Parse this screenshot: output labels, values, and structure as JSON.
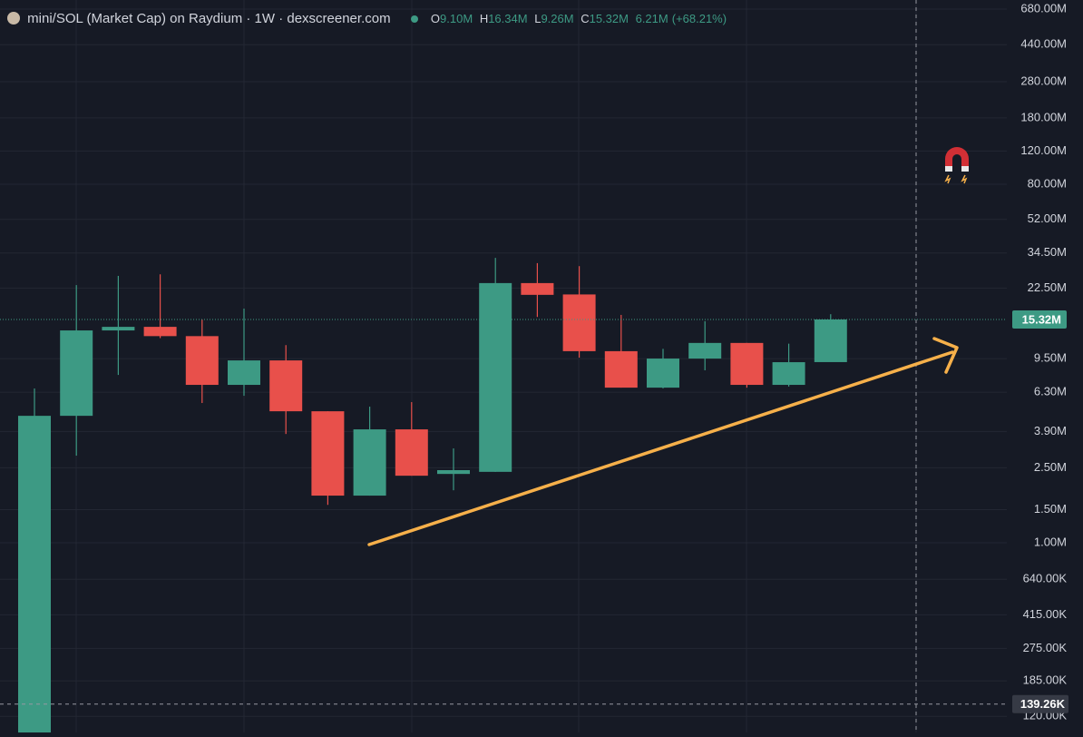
{
  "chart_data": {
    "type": "candlestick",
    "title": "mini/SOL (Market Cap) on Raydium · 1W · dexscreener.com",
    "ohlc_header": {
      "open_key": "O",
      "open": "9.10M",
      "high_key": "H",
      "high": "16.34M",
      "low_key": "L",
      "low": "9.26M",
      "close_key": "C",
      "close": "15.32M",
      "change": "6.21M",
      "change_pct": "(+68.21%)"
    },
    "categories": [
      null,
      null,
      null,
      null,
      null,
      null,
      null,
      null,
      null,
      null,
      null,
      null,
      null,
      null,
      null,
      null,
      null,
      null,
      null,
      null
    ],
    "open": [
      90000,
      4720000,
      13400000,
      14000000,
      12500000,
      6890000,
      9290000,
      4990000,
      1780000,
      4000000,
      2320000,
      2380000,
      23900000,
      20800000,
      10400000,
      6660000,
      9500000,
      11500000,
      6890000,
      9100000
    ],
    "high": [
      6590000,
      23300000,
      26100000,
      26600000,
      15300000,
      17500000,
      11200000,
      4990000,
      5280000,
      5580000,
      3170000,
      32500000,
      30500000,
      29400000,
      16200000,
      10700000,
      15000000,
      11500000,
      11400000,
      16340000
    ],
    "low": [
      90000,
      2900000,
      7780000,
      12200000,
      5520000,
      6030000,
      3780000,
      1590000,
      1780000,
      2270000,
      1900000,
      2380000,
      15800000,
      9610000,
      6660000,
      6600000,
      8230000,
      6660000,
      6750000,
      9260000
    ],
    "close": [
      4720000,
      13400000,
      14000000,
      12500000,
      6890000,
      9290000,
      4990000,
      1780000,
      4000000,
      2270000,
      2430000,
      23900000,
      20700000,
      10400000,
      6660000,
      9500000,
      11500000,
      6890000,
      9090000,
      15320000
    ],
    "up_color": "#3d9a84",
    "down_color": "#e8504b",
    "ylim": [
      98500,
      760000000
    ],
    "log_scale": true,
    "grid": true,
    "yticks": [
      {
        "value": 680000000,
        "label": "680.00M"
      },
      {
        "value": 440000000,
        "label": "440.00M"
      },
      {
        "value": 280000000,
        "label": "280.00M"
      },
      {
        "value": 180000000,
        "label": "180.00M"
      },
      {
        "value": 120000000,
        "label": "120.00M"
      },
      {
        "value": 80000000,
        "label": "80.00M"
      },
      {
        "value": 52000000,
        "label": "52.00M"
      },
      {
        "value": 34500000,
        "label": "34.50M"
      },
      {
        "value": 22500000,
        "label": "22.50M"
      },
      {
        "value": 9500000,
        "label": "9.50M"
      },
      {
        "value": 6300000,
        "label": "6.30M"
      },
      {
        "value": 3900000,
        "label": "3.90M"
      },
      {
        "value": 2500000,
        "label": "2.50M"
      },
      {
        "value": 1500000,
        "label": "1.50M"
      },
      {
        "value": 1000000,
        "label": "1.00M"
      },
      {
        "value": 640000,
        "label": "640.00K"
      },
      {
        "value": 415000,
        "label": "415.00K"
      },
      {
        "value": 275000,
        "label": "275.00K"
      },
      {
        "value": 185000,
        "label": "185.00K"
      },
      {
        "value": 120000,
        "label": "120.00K"
      }
    ],
    "last_price": {
      "value": 15320000,
      "label": "15.32M"
    },
    "crosshair": {
      "value": 139260,
      "label": "139.26K"
    }
  }
}
